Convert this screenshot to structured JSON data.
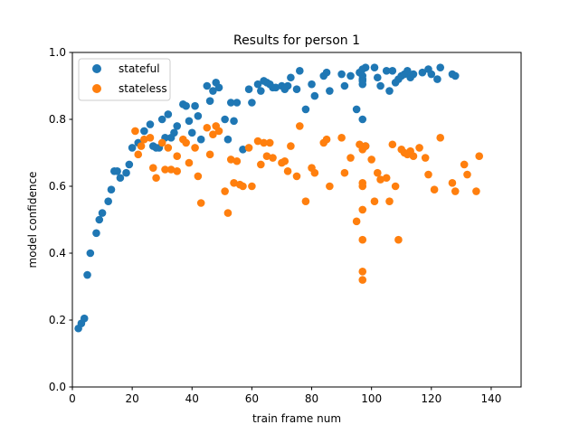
{
  "chart_data": {
    "type": "scatter",
    "title": "Results for person 1",
    "xlabel": "train frame num",
    "ylabel": "model confidence",
    "xlim": [
      0,
      150
    ],
    "ylim": [
      0.0,
      1.0
    ],
    "xticks": [
      0,
      20,
      40,
      60,
      80,
      100,
      120,
      140
    ],
    "xtick_labels": [
      "0",
      "20",
      "40",
      "60",
      "80",
      "100",
      "120",
      "140"
    ],
    "yticks": [
      0.0,
      0.2,
      0.4,
      0.6,
      0.8,
      1.0
    ],
    "ytick_labels": [
      "0.0",
      "0.2",
      "0.4",
      "0.6",
      "0.8",
      "1.0"
    ],
    "grid": false,
    "legend_position": "top-left",
    "series": [
      {
        "name": "stateful",
        "color": "#1f77b4",
        "points": [
          [
            2,
            0.175
          ],
          [
            3,
            0.19
          ],
          [
            4,
            0.205
          ],
          [
            5,
            0.335
          ],
          [
            6,
            0.4
          ],
          [
            8,
            0.46
          ],
          [
            9,
            0.5
          ],
          [
            10,
            0.52
          ],
          [
            12,
            0.555
          ],
          [
            13,
            0.59
          ],
          [
            14,
            0.645
          ],
          [
            15,
            0.645
          ],
          [
            16,
            0.625
          ],
          [
            18,
            0.64
          ],
          [
            19,
            0.665
          ],
          [
            20,
            0.715
          ],
          [
            22,
            0.73
          ],
          [
            24,
            0.765
          ],
          [
            26,
            0.785
          ],
          [
            27,
            0.72
          ],
          [
            28,
            0.715
          ],
          [
            29,
            0.715
          ],
          [
            30,
            0.8
          ],
          [
            31,
            0.745
          ],
          [
            32,
            0.815
          ],
          [
            33,
            0.745
          ],
          [
            34,
            0.76
          ],
          [
            35,
            0.78
          ],
          [
            37,
            0.845
          ],
          [
            38,
            0.84
          ],
          [
            39,
            0.795
          ],
          [
            40,
            0.76
          ],
          [
            41,
            0.84
          ],
          [
            42,
            0.81
          ],
          [
            43,
            0.74
          ],
          [
            45,
            0.9
          ],
          [
            46,
            0.855
          ],
          [
            47,
            0.885
          ],
          [
            48,
            0.91
          ],
          [
            49,
            0.895
          ],
          [
            51,
            0.8
          ],
          [
            52,
            0.74
          ],
          [
            53,
            0.85
          ],
          [
            54,
            0.795
          ],
          [
            55,
            0.85
          ],
          [
            57,
            0.71
          ],
          [
            59,
            0.89
          ],
          [
            60,
            0.85
          ],
          [
            62,
            0.905
          ],
          [
            63,
            0.885
          ],
          [
            64,
            0.915
          ],
          [
            65,
            0.91
          ],
          [
            66,
            0.905
          ],
          [
            67,
            0.895
          ],
          [
            68,
            0.895
          ],
          [
            70,
            0.9
          ],
          [
            71,
            0.89
          ],
          [
            72,
            0.9
          ],
          [
            73,
            0.925
          ],
          [
            75,
            0.89
          ],
          [
            76,
            0.945
          ],
          [
            78,
            0.83
          ],
          [
            80,
            0.905
          ],
          [
            81,
            0.87
          ],
          [
            84,
            0.93
          ],
          [
            85,
            0.94
          ],
          [
            86,
            0.885
          ],
          [
            90,
            0.935
          ],
          [
            91,
            0.9
          ],
          [
            93,
            0.93
          ],
          [
            95,
            0.83
          ],
          [
            96,
            0.94
          ],
          [
            97,
            0.95
          ],
          [
            97,
            0.93
          ],
          [
            97,
            0.92
          ],
          [
            97,
            0.915
          ],
          [
            97,
            0.905
          ],
          [
            97,
            0.8
          ],
          [
            98,
            0.955
          ],
          [
            98,
            0.72
          ],
          [
            101,
            0.955
          ],
          [
            102,
            0.925
          ],
          [
            103,
            0.9
          ],
          [
            105,
            0.945
          ],
          [
            106,
            0.885
          ],
          [
            107,
            0.945
          ],
          [
            108,
            0.91
          ],
          [
            109,
            0.92
          ],
          [
            110,
            0.93
          ],
          [
            111,
            0.935
          ],
          [
            112,
            0.945
          ],
          [
            113,
            0.925
          ],
          [
            114,
            0.935
          ],
          [
            117,
            0.94
          ],
          [
            119,
            0.95
          ],
          [
            120,
            0.935
          ],
          [
            122,
            0.92
          ],
          [
            123,
            0.955
          ],
          [
            127,
            0.935
          ],
          [
            128,
            0.93
          ]
        ]
      },
      {
        "name": "stateless",
        "color": "#ff7f0e",
        "points": [
          [
            21,
            0.765
          ],
          [
            22,
            0.695
          ],
          [
            23,
            0.72
          ],
          [
            24,
            0.74
          ],
          [
            26,
            0.745
          ],
          [
            27,
            0.655
          ],
          [
            28,
            0.625
          ],
          [
            30,
            0.73
          ],
          [
            31,
            0.65
          ],
          [
            32,
            0.715
          ],
          [
            33,
            0.65
          ],
          [
            35,
            0.645
          ],
          [
            35,
            0.69
          ],
          [
            37,
            0.74
          ],
          [
            38,
            0.73
          ],
          [
            39,
            0.67
          ],
          [
            41,
            0.715
          ],
          [
            42,
            0.63
          ],
          [
            43,
            0.55
          ],
          [
            45,
            0.775
          ],
          [
            46,
            0.695
          ],
          [
            47,
            0.755
          ],
          [
            48,
            0.78
          ],
          [
            49,
            0.765
          ],
          [
            51,
            0.585
          ],
          [
            52,
            0.52
          ],
          [
            53,
            0.68
          ],
          [
            54,
            0.61
          ],
          [
            55,
            0.675
          ],
          [
            56,
            0.605
          ],
          [
            57,
            0.6
          ],
          [
            59,
            0.715
          ],
          [
            60,
            0.6
          ],
          [
            62,
            0.735
          ],
          [
            63,
            0.665
          ],
          [
            64,
            0.73
          ],
          [
            65,
            0.69
          ],
          [
            66,
            0.73
          ],
          [
            67,
            0.685
          ],
          [
            70,
            0.67
          ],
          [
            71,
            0.675
          ],
          [
            72,
            0.645
          ],
          [
            73,
            0.72
          ],
          [
            75,
            0.63
          ],
          [
            76,
            0.78
          ],
          [
            78,
            0.555
          ],
          [
            80,
            0.655
          ],
          [
            81,
            0.64
          ],
          [
            84,
            0.73
          ],
          [
            85,
            0.74
          ],
          [
            86,
            0.6
          ],
          [
            90,
            0.745
          ],
          [
            91,
            0.64
          ],
          [
            93,
            0.685
          ],
          [
            95,
            0.495
          ],
          [
            96,
            0.725
          ],
          [
            97,
            0.71
          ],
          [
            97,
            0.61
          ],
          [
            97,
            0.6
          ],
          [
            97,
            0.53
          ],
          [
            97,
            0.44
          ],
          [
            97,
            0.345
          ],
          [
            97,
            0.32
          ],
          [
            98,
            0.72
          ],
          [
            100,
            0.68
          ],
          [
            101,
            0.555
          ],
          [
            102,
            0.64
          ],
          [
            103,
            0.62
          ],
          [
            105,
            0.625
          ],
          [
            106,
            0.555
          ],
          [
            107,
            0.725
          ],
          [
            108,
            0.6
          ],
          [
            109,
            0.44
          ],
          [
            110,
            0.71
          ],
          [
            111,
            0.7
          ],
          [
            112,
            0.695
          ],
          [
            113,
            0.705
          ],
          [
            114,
            0.69
          ],
          [
            116,
            0.715
          ],
          [
            118,
            0.685
          ],
          [
            119,
            0.635
          ],
          [
            121,
            0.59
          ],
          [
            123,
            0.745
          ],
          [
            127,
            0.61
          ],
          [
            128,
            0.585
          ],
          [
            131,
            0.665
          ],
          [
            132,
            0.635
          ],
          [
            135,
            0.585
          ],
          [
            136,
            0.69
          ]
        ]
      }
    ]
  }
}
